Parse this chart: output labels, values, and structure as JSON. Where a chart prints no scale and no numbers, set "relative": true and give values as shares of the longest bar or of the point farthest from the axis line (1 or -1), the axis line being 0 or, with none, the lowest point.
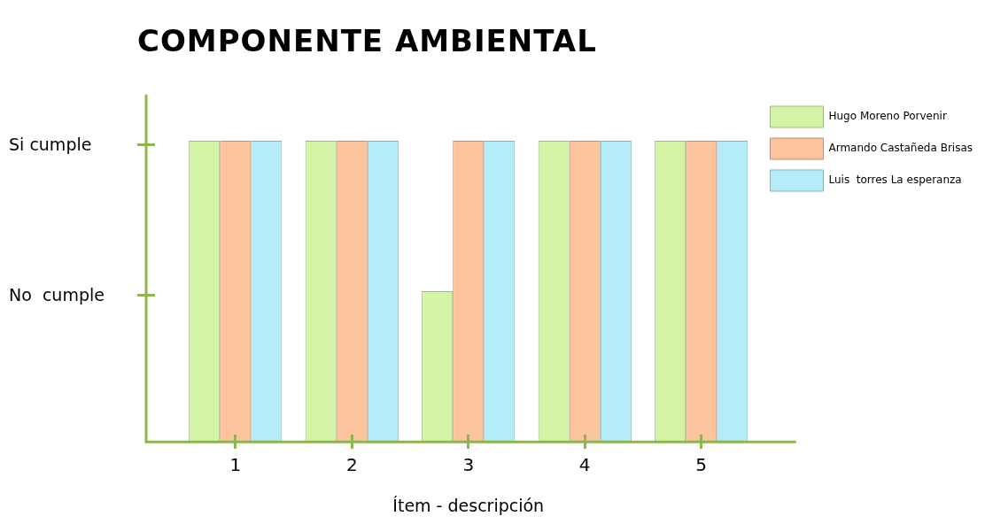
{
  "chart_data": {
    "type": "bar",
    "title": "COMPONENTE AMBIENTAL",
    "xlabel": "Ítem - descripción",
    "categories": [
      "1",
      "2",
      "3",
      "4",
      "5"
    ],
    "series": [
      {
        "name": "Hugo Moreno Porvenir",
        "color": "#d4f5a8",
        "values": [
          1,
          1,
          0.5,
          1,
          1
        ]
      },
      {
        "name": "Armando Castañeda Brisas",
        "color": "#fbc49c",
        "values": [
          1,
          1,
          1,
          1,
          1
        ]
      },
      {
        "name": "Luis  torres La esperanza",
        "color": "#b4ecf8",
        "values": [
          1,
          1,
          1,
          1,
          1
        ]
      }
    ],
    "relative": true,
    "annotations": [
      "Si cumple",
      "No  cumple"
    ],
    "grid": false,
    "legend": "top right"
  }
}
